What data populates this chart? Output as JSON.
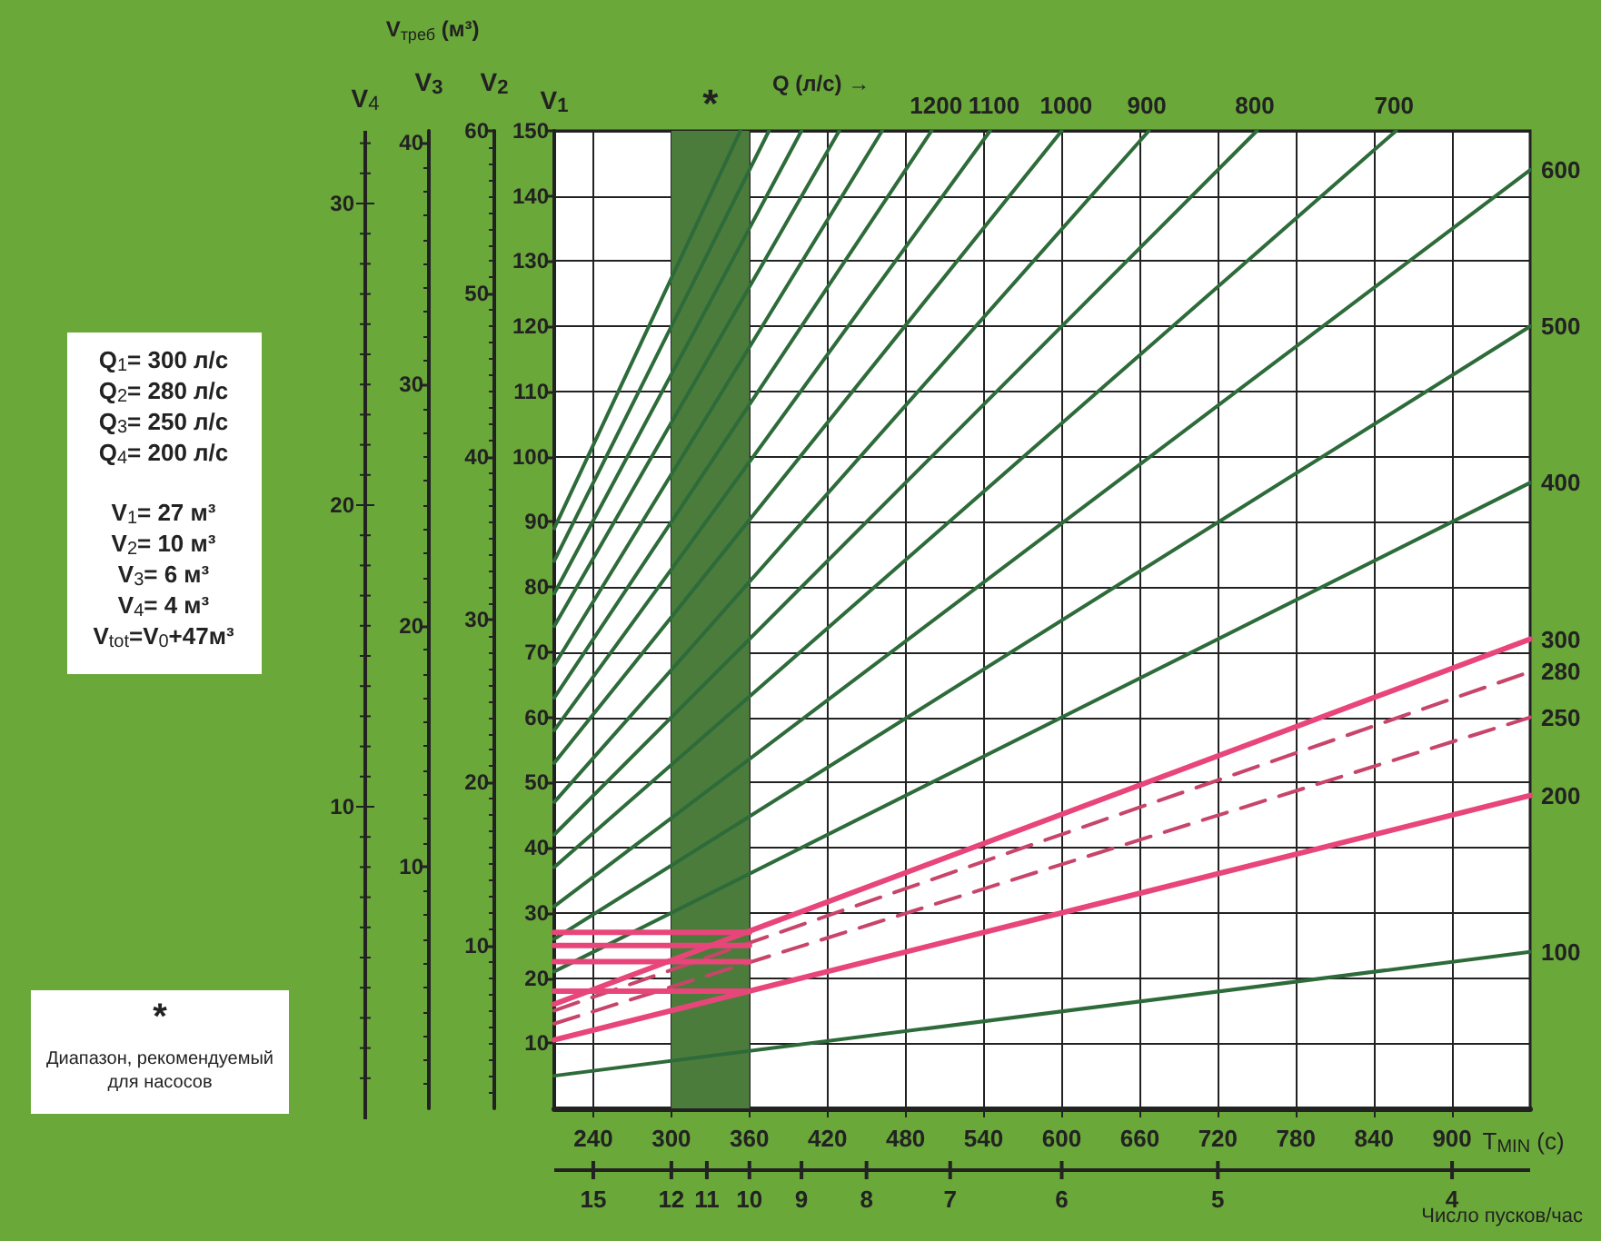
{
  "chart_data": {
    "type": "line",
    "xlabel": "T$_{MIN}$ (c)",
    "ylabel": "V$_{1}$",
    "y2label": "V$_{2}$",
    "y3label": "V$_{3}$",
    "xlim": [
      210,
      960
    ],
    "xticks": [
      240,
      300,
      360,
      420,
      480,
      540,
      600,
      660,
      720,
      780,
      840,
      900
    ],
    "ylim": [
      0,
      150
    ],
    "yticks": [
      10,
      20,
      30,
      40,
      50,
      60,
      70,
      80,
      90,
      100,
      110,
      120,
      130,
      140,
      150
    ],
    "y2lim": [
      0,
      60
    ],
    "y2ticks": [
      10,
      20,
      30,
      40,
      50,
      60
    ],
    "y3lim": [
      0,
      40.5
    ],
    "y3ticks": [
      10,
      20,
      30,
      40
    ],
    "grid": true,
    "series": [
      {
        "name": "100",
        "color": "#2e6b3a",
        "x": [
          210,
          960
        ],
        "values": [
          5,
          24
        ]
      },
      {
        "name": "200",
        "color": "#e8457a",
        "x": [
          210,
          960
        ],
        "values": [
          10.5,
          48
        ]
      },
      {
        "name": "250",
        "color": "#c8456a",
        "line_style": "dashed",
        "x": [
          210,
          960
        ],
        "values": [
          13,
          60
        ]
      },
      {
        "name": "280",
        "color": "#c8456a",
        "line_style": "dashed",
        "x": [
          210,
          960
        ],
        "values": [
          15,
          67
        ]
      },
      {
        "name": "300",
        "color": "#e8457a",
        "x": [
          210,
          960
        ],
        "values": [
          16,
          72
        ]
      },
      {
        "name": "400",
        "color": "#2e6b3a",
        "x": [
          210,
          960
        ],
        "values": [
          21,
          96
        ]
      },
      {
        "name": "500",
        "color": "#2e6b3a",
        "x": [
          210,
          960
        ],
        "values": [
          26,
          120
        ]
      },
      {
        "name": "600",
        "color": "#2e6b3a",
        "x": [
          210,
          960
        ],
        "values": [
          31,
          144
        ]
      },
      {
        "name": "700",
        "color": "#2e6b3a",
        "x": [
          210,
          857
        ],
        "values": [
          37,
          150
        ]
      },
      {
        "name": "800",
        "color": "#2e6b3a",
        "x": [
          210,
          750
        ],
        "values": [
          42,
          150
        ]
      },
      {
        "name": "900",
        "color": "#2e6b3a",
        "x": [
          210,
          667
        ],
        "values": [
          47,
          150
        ]
      },
      {
        "name": "1000",
        "color": "#2e6b3a",
        "x": [
          210,
          600
        ],
        "values": [
          53,
          150
        ]
      },
      {
        "name": "1100",
        "color": "#2e6b3a",
        "x": [
          210,
          545
        ],
        "values": [
          58,
          150
        ]
      },
      {
        "name": "1200",
        "color": "#2e6b3a",
        "x": [
          210,
          500
        ],
        "values": [
          63,
          150
        ]
      },
      {
        "color": "#2e6b3a",
        "x": [
          210,
          462
        ],
        "values": [
          68,
          150
        ]
      },
      {
        "color": "#2e6b3a",
        "x": [
          210,
          429
        ],
        "values": [
          74,
          150
        ]
      },
      {
        "color": "#2e6b3a",
        "x": [
          210,
          400
        ],
        "values": [
          79,
          150
        ]
      },
      {
        "color": "#2e6b3a",
        "x": [
          210,
          375
        ],
        "values": [
          84,
          150
        ]
      },
      {
        "color": "#2e6b3a",
        "x": [
          210,
          353
        ],
        "values": [
          89,
          150
        ]
      },
      {
        "color": "#e8457a",
        "x": [
          360,
          210
        ],
        "values": [
          27,
          27
        ]
      },
      {
        "color": "#e8457a",
        "x": [
          360,
          210
        ],
        "values": [
          25,
          25
        ]
      },
      {
        "color": "#e8457a",
        "x": [
          360,
          210
        ],
        "values": [
          22.5,
          22.5
        ]
      },
      {
        "color": "#e8457a",
        "x": [
          360,
          210
        ],
        "values": [
          18,
          18
        ]
      }
    ],
    "bands": [
      {
        "axis": "x",
        "from": 300,
        "to": 360,
        "label": "*",
        "color": "#4c7c3c"
      }
    ],
    "annotations": [
      "V$_{треб}$ (м³)",
      "Q (л/с) →",
      "V$_{4}$",
      "30",
      "20",
      "10",
      "Q$_{1}$= 300 л/с",
      "Q$_{2}$= 280 л/с",
      "Q$_{3}$= 250 л/с",
      "Q$_{4}$= 200 л/с",
      "V$_{1}$= 27 м³",
      "V$_{2}$= 10 м³",
      "V$_{3}$= 6 м³",
      "V$_{4}$= 4 м³",
      "V$_{tot}$=V$_{0}$+47м³",
      "*",
      "Диапазон, рекомендуемый",
      "для насосов",
      "Число пусков/час",
      "15",
      "12",
      "11",
      "10",
      "9",
      "8",
      "7",
      "6",
      "5",
      "4"
    ]
  }
}
